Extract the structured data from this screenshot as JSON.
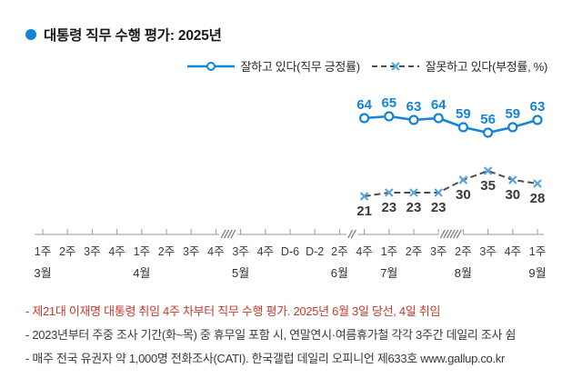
{
  "title": {
    "text": "대통령 직무 수행 평가: 2025년"
  },
  "colors": {
    "accent_blue": "#1583d6",
    "x_marker_blue": "#54a4e0",
    "negative_line_gray": "#4d4d4d",
    "footnote_red": "#c43a2e",
    "axis_gray": "#9b9b9b",
    "label_dark": "#3a3a3a"
  },
  "legend": [
    {
      "label": "잘하고 있다(직무 긍정률)",
      "line_style": "solid",
      "marker": "circle",
      "color": "#1583d6"
    },
    {
      "label": "잘못하고 있다(부정률, %)",
      "line_style": "dashed",
      "marker": "x",
      "line_color": "#4d4d4d",
      "marker_color": "#54a4e0"
    }
  ],
  "chart_data": {
    "type": "line",
    "title": "대통령 직무 수행 평가: 2025년",
    "unit": "%",
    "legend_position": "top",
    "grid": false,
    "y_axis_visible": false,
    "tick_labels": [
      "1주",
      "2주",
      "3주",
      "4주",
      "1주",
      "2주",
      "3주",
      "4주",
      "3주",
      "4주",
      "D-6",
      "D-2",
      "2주",
      "4주",
      "1주",
      "2주",
      "3주",
      "2주",
      "3주",
      "4주",
      "1주"
    ],
    "months": [
      {
        "label": "3월",
        "tick": 0
      },
      {
        "label": "4월",
        "tick": 4
      },
      {
        "label": "5월",
        "tick": 8
      },
      {
        "label": "6월",
        "tick": 12
      },
      {
        "label": "7월",
        "tick": 14
      },
      {
        "label": "8월",
        "tick": 17
      },
      {
        "label": "9월",
        "tick": 20
      }
    ],
    "axis_breaks": [
      {
        "after_tick": 7,
        "slashes": 4
      },
      {
        "after_tick": 12,
        "slashes": 2
      },
      {
        "after_tick": 16,
        "slashes": 6
      }
    ],
    "series": [
      {
        "name": "잘하고 있다(직무 긍정률)",
        "style": "solid",
        "marker": "circle",
        "color": "#1583d6",
        "start_tick": 13,
        "x_labels": [
          "6월 4주",
          "7월 1주",
          "7월 2주",
          "7월 3주",
          "8월 2주",
          "8월 3주",
          "8월 4주",
          "9월 1주"
        ],
        "values": [
          64,
          65,
          63,
          64,
          59,
          56,
          59,
          63
        ]
      },
      {
        "name": "잘못하고 있다(부정률, %)",
        "style": "dashed",
        "marker": "x",
        "line_color": "#4d4d4d",
        "marker_color": "#54a4e0",
        "value_label_color": "#3a3a3a",
        "start_tick": 13,
        "x_labels": [
          "6월 4주",
          "7월 1주",
          "7월 2주",
          "7월 3주",
          "8월 2주",
          "8월 3주",
          "8월 4주",
          "9월 1주"
        ],
        "values": [
          21,
          23,
          23,
          23,
          30,
          35,
          30,
          28
        ]
      }
    ]
  },
  "footnotes": [
    {
      "text": "- 제21대 이재명 대통령 취임 4주 차부터 직무 수행 평가. 2025년 6월 3일 당선, 4일 취임",
      "color": "#c43a2e"
    },
    {
      "text": "- 2023년부터 주중 조사 기간(화~목) 중 휴무일 포함 시, 연말연시·여름휴가철 각각 3주간 데일리 조사 쉼",
      "color": "#3a3a3a"
    },
    {
      "text": "- 매주 전국 유권자 약 1,000명 전화조사(CATI). 한국갤럽 데일리 오피니언 제633호 www.gallup.co.kr",
      "color": "#3a3a3a"
    }
  ]
}
